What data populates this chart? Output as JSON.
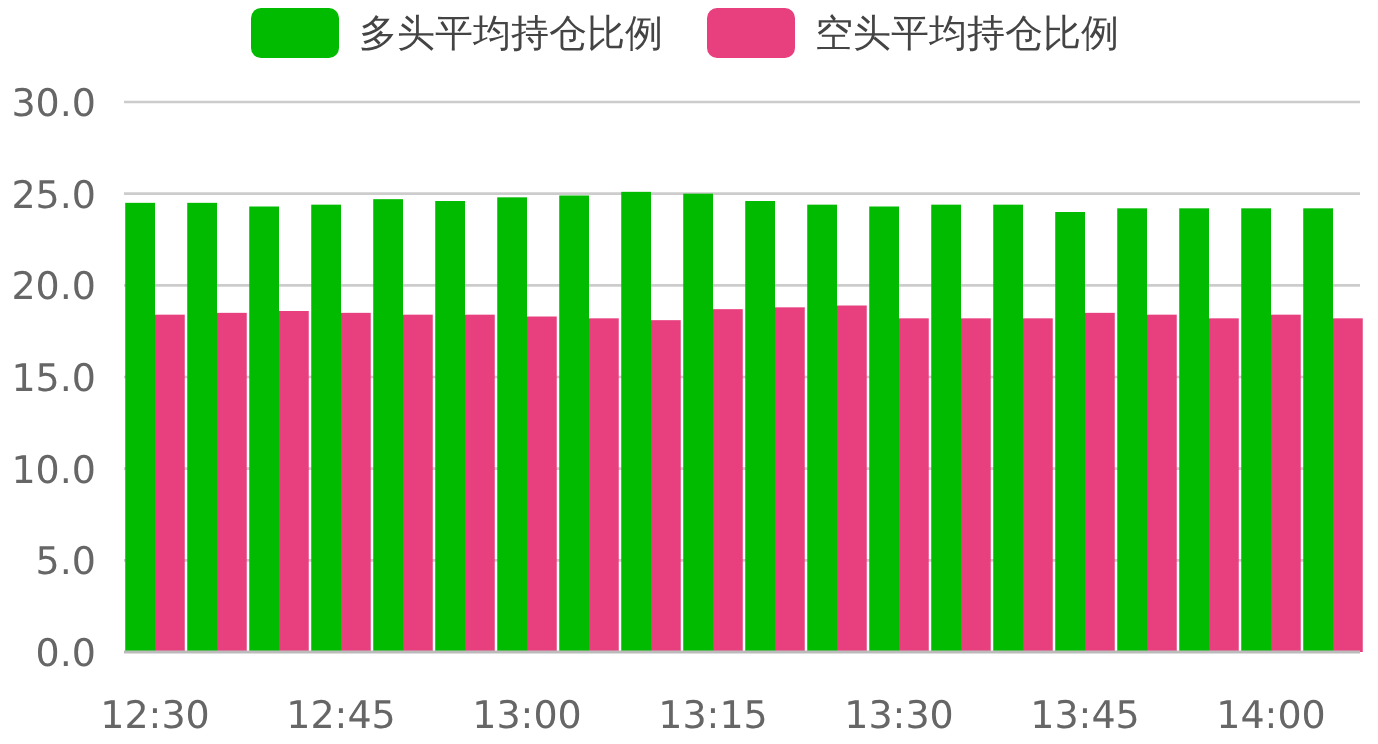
{
  "chart_data": {
    "type": "bar",
    "categories": [
      "12:30",
      null,
      null,
      "12:45",
      null,
      null,
      "13:00",
      null,
      null,
      "13:15",
      null,
      null,
      "13:30",
      null,
      null,
      "13:45",
      null,
      null,
      "14:00",
      null
    ],
    "series": [
      {
        "name": "多头平均持仓比例",
        "color": "#00bb00",
        "values": [
          24.5,
          24.5,
          24.3,
          24.4,
          24.7,
          24.6,
          24.8,
          24.9,
          25.1,
          25.0,
          24.6,
          24.4,
          24.3,
          24.4,
          24.4,
          24.0,
          24.2,
          24.2,
          24.2,
          24.2
        ]
      },
      {
        "name": "空头平均持仓比例",
        "color": "#e8407e",
        "values": [
          18.4,
          18.5,
          18.6,
          18.5,
          18.4,
          18.4,
          18.3,
          18.2,
          18.1,
          18.7,
          18.8,
          18.9,
          18.2,
          18.2,
          18.2,
          18.5,
          18.4,
          18.2,
          18.4,
          18.2
        ]
      }
    ],
    "ylim": [
      0,
      30
    ],
    "yticks": [
      {
        "value": 0,
        "label": "0.0"
      },
      {
        "value": 5,
        "label": "5.0"
      },
      {
        "value": 10,
        "label": "10.0"
      },
      {
        "value": 15,
        "label": "15.0"
      },
      {
        "value": 20,
        "label": "20.0"
      },
      {
        "value": 25,
        "label": "25.0"
      },
      {
        "value": 30,
        "label": "30.0"
      }
    ],
    "grid": "y",
    "legend": "top"
  }
}
